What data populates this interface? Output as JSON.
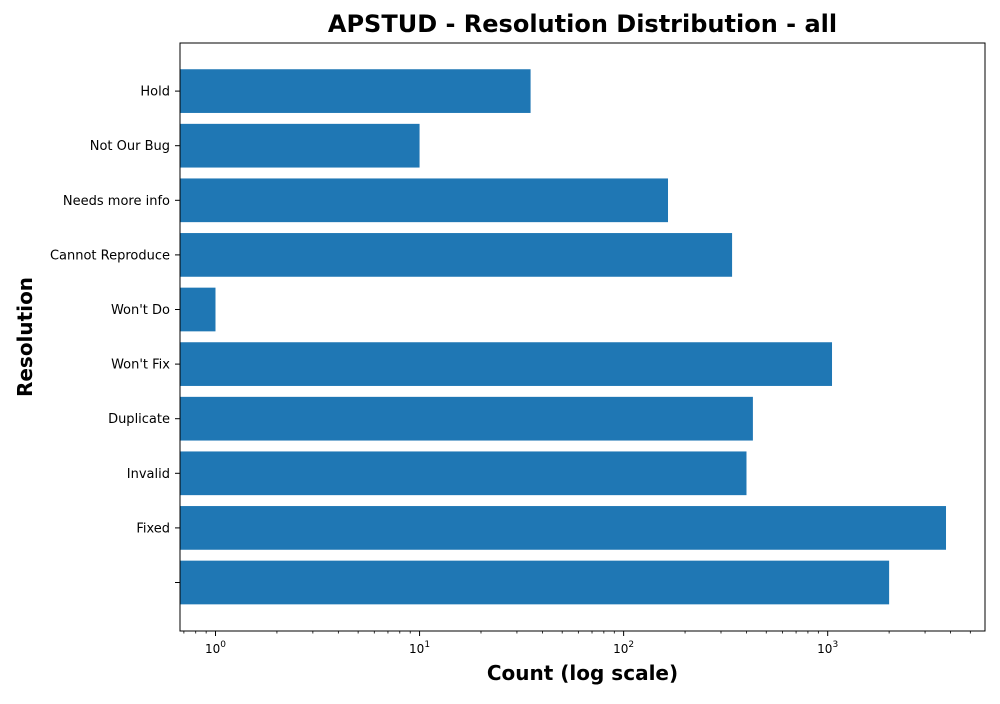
{
  "chart_data": {
    "type": "bar",
    "orientation": "horizontal",
    "title": "APSTUD - Resolution Distribution - all",
    "xlabel": "Count (log scale)",
    "ylabel": "Resolution",
    "x_scale": "log",
    "xlim": [
      0.67,
      5900
    ],
    "x_ticks": [
      1,
      10,
      100,
      1000
    ],
    "x_tick_labels": [
      {
        "base": "10",
        "exp": "0"
      },
      {
        "base": "10",
        "exp": "1"
      },
      {
        "base": "10",
        "exp": "2"
      },
      {
        "base": "10",
        "exp": "3"
      }
    ],
    "categories": [
      "",
      "Fixed",
      "Invalid",
      "Duplicate",
      "Won't Fix",
      "Won't Do",
      "Cannot Reproduce",
      "Needs more info",
      "Not Our Bug",
      "Hold"
    ],
    "values": [
      2000,
      3800,
      400,
      430,
      1050,
      1,
      340,
      165,
      10,
      35
    ],
    "grid": false,
    "legend": "none",
    "bar_color": "#1f77b4"
  }
}
